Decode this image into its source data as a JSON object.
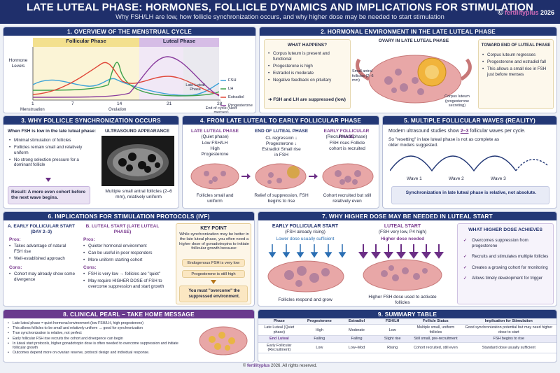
{
  "header": {
    "title": "LATE LUTEAL PHASE: HORMONES, FOLLICLE DYNAMICS AND IMPLICATIONS FOR STIMULATION",
    "subtitle": "Why FSH/LH are low, how follicle synchronization occurs, and why higher dose may be needed to start stimulation",
    "logo": "fertilityplus",
    "year": "2026"
  },
  "p1": {
    "title": "1. OVERVIEW OF THE MENSTRUAL CYCLE",
    "follicular": "Follicular Phase",
    "luteal": "Luteal Phase",
    "ylabel": "Hormone Levels",
    "late_luteal": "Late Luteal Phase",
    "ticks": [
      "1",
      "7",
      "14",
      "21",
      "28"
    ],
    "menstruation": "Menstruation",
    "ovulation": "Ovulation",
    "end_of_cycle": "End of cycle (Next menses)",
    "legend": [
      {
        "name": "FSH",
        "color": "#3aa1d8"
      },
      {
        "name": "LH",
        "color": "#3da14a"
      },
      {
        "name": "Estradiol",
        "color": "#e0483a"
      },
      {
        "name": "Progesterone",
        "color": "#8a3d9e"
      }
    ]
  },
  "p2": {
    "title": "2. HORMONAL ENVIRONMENT IN THE LATE LUTEAL PHASE",
    "wh_title": "WHAT HAPPENS?",
    "items": [
      "Corpus luteum is present and functional",
      "Progesterone is high",
      "Estradiol is moderate",
      "Negative feedback on pituitary"
    ],
    "result": "FSH and LH are suppressed (low)",
    "ovary_title": "OVARY IN LATE LUTEAL PHASE",
    "small_antral": "Small antral follicles (2–6 mm)",
    "corpus": "Corpus luteum (progesterone secreting)",
    "toward_title": "TOWARD END OF LUTEAL PHASE",
    "toward_items": [
      "Corpus luteum regresses",
      "Progesterone and estradiol fall",
      "This allows a small rise in FSH just before menses"
    ]
  },
  "p3": {
    "title": "3. WHY FOLLICLE SYNCHRONIZATION OCCURS",
    "lead": "When FSH is low in the late luteal phase:",
    "items": [
      "Minimal stimulation of follicles",
      "Follicles remain small and relatively uniform",
      "No strong selection pressure for a dominant follicle"
    ],
    "result": "Result: A more even cohort before the next wave begins.",
    "us_title": "ULTRASOUND APPEARANCE",
    "us_caption": "Multiple small antral follicles (2–6 mm), relatively uniform"
  },
  "p4": {
    "title": "4. FROM LATE LUTEAL TO EARLY FOLLICULAR PHASE",
    "c1_title": "LATE LUTEAL PHASE",
    "c1_sub": "(Quiet phase)",
    "c1_desc": "Low FSH/LH High Progesterone",
    "c1_foot": "Follicles small and uniform",
    "c2_title": "END OF LUTEAL PHASE",
    "c2_desc": "CL regression ↓ Progesterone ↓ Estradiol Small rise in FSH",
    "c2_foot": "Relief of suppression, FSH begins to rise",
    "c3_title": "EARLY FOLLICULAR PHASE",
    "c3_sub": "(Recruitment phase)",
    "c3_desc": "FSH rises Follicle cohort is recruited",
    "c3_foot": "Cohort recruited but still relatively even"
  },
  "p5": {
    "title": "5. MULTIPLE FOLLICULAR WAVES (REALITY)",
    "lead1": "Modern ultrasound studies show",
    "em": "2–3",
    "lead2": "follicular waves per cycle.",
    "text": "So \"resetting\" in late luteal phase is not as complete as older models suggested.",
    "waves": [
      "Wave 1",
      "Wave 2",
      "Wave 3"
    ],
    "note": "Synchronization in late luteal phase is relative, not absolute."
  },
  "p6": {
    "title": "6. IMPLICATIONS FOR STIMULATION PROTOCOLS (IVF)",
    "a_title": "A. EARLY FOLLICULAR START (DAY 2–3)",
    "a_pros_label": "Pros:",
    "a_pros": [
      "Takes advantage of natural FSH rise",
      "Well-established approach"
    ],
    "a_cons_label": "Cons:",
    "a_cons": [
      "Cohort may already show some divergence"
    ],
    "b_title": "B. LUTEAL START (LATE LUTEAL PHASE)",
    "b_pros_label": "Pros:",
    "b_pros": [
      "Quieter hormonal environment",
      "Can be useful in poor responders",
      "More uniform starting cohort"
    ],
    "b_cons_label": "Cons:",
    "b_cons": [
      "FSH is very low → follicles are \"quiet\"",
      "May require HIGHER DOSE of FSH to overcome suppression and start growth"
    ],
    "kp_title": "KEY POINT",
    "kp_text": "While synchronization may be better in the late luteal phase, you often need a higher dose of gonadotropins to initiate follicular growth because:",
    "kp_box1": "Endogenous FSH is very low",
    "kp_box2": "Progesterone is still high",
    "kp_result": "You must \"overcome\" the suppressed environment."
  },
  "p7": {
    "title": "7. WHY HIGHER DOSE MAY BE NEEDED IN LUTEAL START",
    "ef_title": "EARLY FOLLICULAR START",
    "ef_sub": "(FSH already rising)",
    "ef_dose": "Lower dose usually sufficient",
    "ef_foot": "Follicles respond and grow",
    "ls_title": "LUTEAL START",
    "ls_sub": "(FSH very low, P4 high)",
    "ls_dose": "Higher dose needed",
    "ls_foot": "Higher FSH dose used to activate follicles",
    "ach_title": "WHAT HIGHER DOSE ACHIEVES",
    "ach_items": [
      "Overcomes suppression from progesterone",
      "Recruits and stimulates multiple follicles",
      "Creates a growing cohort for monitoring",
      "Allows timely development for trigger"
    ]
  },
  "p8": {
    "title": "8. CLINICAL PEARL – TAKE HOME MESSAGE",
    "items": [
      "Late luteal phase = quiet hormonal environment (low FSH/LH, high progesterone)",
      "This allows follicles to be small and relatively uniform → good for synchronization",
      "True synchronization is relative, not perfect",
      "Early follicular FSH rise recruits the cohort and divergence can begin",
      "In luteal start protocols, higher gonadotropin dose is often needed to overcome suppression and initiate follicular growth",
      "Outcomes depend more on ovarian reserve, protocol design and individual response."
    ]
  },
  "p9": {
    "title": "9. SUMMARY TABLE",
    "headers": [
      "Phase",
      "Progesterone",
      "Estradiol",
      "FSH/LH",
      "Follicle Status",
      "Implication for Stimulation"
    ],
    "rows": [
      [
        "Late Luteal (Quiet phase)",
        "High",
        "Moderate",
        "Low",
        "Multiple small, uniform follicles",
        "Good synchronization potential but may need higher dose to start"
      ],
      [
        "End Luteal",
        "Falling",
        "Falling",
        "Slight rise",
        "Still small, pre-recruitment",
        "FSH begins to rise"
      ],
      [
        "Early Follicular (Recruitment)",
        "Low",
        "Low–Mod",
        "Rising",
        "Cohort recruited, still even",
        "Standard dose usually sufficient"
      ]
    ]
  },
  "footer": {
    "brand": "fertilityplus",
    "text": "2026. All rights reserved."
  }
}
